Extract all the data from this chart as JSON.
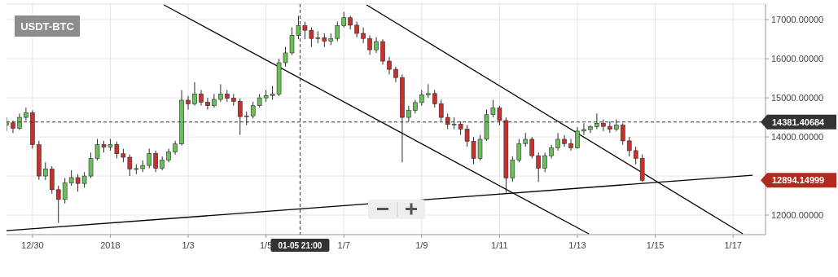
{
  "chart_data": {
    "type": "candlestick",
    "title": "USDT-BTC",
    "grid": true,
    "xlim": [
      "2017-12-29T08:00",
      "2018-01-17T20:00"
    ],
    "xticks": [
      {
        "value": "2017-12-30",
        "label": "12/30"
      },
      {
        "value": "2018-01-01",
        "label": "2018"
      },
      {
        "value": "2018-01-03",
        "label": "1/3"
      },
      {
        "value": "2018-01-05",
        "label": "1/5"
      },
      {
        "value": "2018-01-07",
        "label": "1/7"
      },
      {
        "value": "2018-01-09",
        "label": "1/9"
      },
      {
        "value": "2018-01-11",
        "label": "1/11"
      },
      {
        "value": "2018-01-13",
        "label": "1/13"
      },
      {
        "value": "2018-01-15",
        "label": "1/15"
      },
      {
        "value": "2018-01-17",
        "label": "1/17"
      }
    ],
    "ylim": [
      11500,
      17400
    ],
    "yticks": [
      {
        "value": 12000,
        "label": "12000.00000"
      },
      {
        "value": 13000,
        "label": null
      },
      {
        "value": 14000,
        "label": "14000.00000"
      },
      {
        "value": 15000,
        "label": "15000.00000"
      },
      {
        "value": 16000,
        "label": "16000.00000"
      },
      {
        "value": 17000,
        "label": "17000.00000"
      }
    ],
    "x": [
      "2017-12-29T08:00",
      "2017-12-29T12:00",
      "2017-12-29T16:00",
      "2017-12-29T20:00",
      "2017-12-30T00:00",
      "2017-12-30T04:00",
      "2017-12-30T08:00",
      "2017-12-30T12:00",
      "2017-12-30T16:00",
      "2017-12-30T20:00",
      "2017-12-31T00:00",
      "2017-12-31T04:00",
      "2017-12-31T08:00",
      "2017-12-31T12:00",
      "2017-12-31T16:00",
      "2017-12-31T20:00",
      "2018-01-01T00:00",
      "2018-01-01T04:00",
      "2018-01-01T08:00",
      "2018-01-01T12:00",
      "2018-01-01T16:00",
      "2018-01-01T20:00",
      "2018-01-02T00:00",
      "2018-01-02T04:00",
      "2018-01-02T08:00",
      "2018-01-02T12:00",
      "2018-01-02T16:00",
      "2018-01-02T20:00",
      "2018-01-03T00:00",
      "2018-01-03T04:00",
      "2018-01-03T08:00",
      "2018-01-03T12:00",
      "2018-01-03T16:00",
      "2018-01-03T20:00",
      "2018-01-04T00:00",
      "2018-01-04T04:00",
      "2018-01-04T08:00",
      "2018-01-04T12:00",
      "2018-01-04T16:00",
      "2018-01-04T20:00",
      "2018-01-05T00:00",
      "2018-01-05T04:00",
      "2018-01-05T08:00",
      "2018-01-05T12:00",
      "2018-01-05T16:00",
      "2018-01-05T20:00",
      "2018-01-06T00:00",
      "2018-01-06T04:00",
      "2018-01-06T08:00",
      "2018-01-06T12:00",
      "2018-01-06T16:00",
      "2018-01-06T20:00",
      "2018-01-07T00:00",
      "2018-01-07T04:00",
      "2018-01-07T08:00",
      "2018-01-07T12:00",
      "2018-01-07T16:00",
      "2018-01-07T20:00",
      "2018-01-08T00:00",
      "2018-01-08T04:00",
      "2018-01-08T08:00",
      "2018-01-08T12:00",
      "2018-01-08T16:00",
      "2018-01-08T20:00",
      "2018-01-09T00:00",
      "2018-01-09T04:00",
      "2018-01-09T08:00",
      "2018-01-09T12:00",
      "2018-01-09T16:00",
      "2018-01-09T20:00",
      "2018-01-10T00:00",
      "2018-01-10T04:00",
      "2018-01-10T08:00",
      "2018-01-10T12:00",
      "2018-01-10T16:00",
      "2018-01-10T20:00",
      "2018-01-11T00:00",
      "2018-01-11T04:00",
      "2018-01-11T08:00",
      "2018-01-11T12:00",
      "2018-01-11T16:00",
      "2018-01-11T20:00",
      "2018-01-12T00:00",
      "2018-01-12T04:00",
      "2018-01-12T08:00",
      "2018-01-12T12:00",
      "2018-01-12T16:00",
      "2018-01-12T20:00",
      "2018-01-13T00:00",
      "2018-01-13T04:00",
      "2018-01-13T08:00",
      "2018-01-13T12:00",
      "2018-01-13T16:00",
      "2018-01-13T20:00",
      "2018-01-14T00:00",
      "2018-01-14T04:00",
      "2018-01-14T08:00",
      "2018-01-14T12:00",
      "2018-01-14T16:00"
    ],
    "ohlc": [
      [
        14300,
        14500,
        14150,
        14360
      ],
      [
        14360,
        14420,
        14100,
        14220
      ],
      [
        14220,
        14600,
        14180,
        14500
      ],
      [
        14500,
        14750,
        14420,
        14620
      ],
      [
        14620,
        14680,
        13700,
        13800
      ],
      [
        13800,
        13900,
        12900,
        13000
      ],
      [
        13000,
        13350,
        12900,
        13180
      ],
      [
        13180,
        13250,
        12550,
        12650
      ],
      [
        12650,
        12750,
        11800,
        12400
      ],
      [
        12400,
        12950,
        12300,
        12820
      ],
      [
        12820,
        13150,
        12750,
        12960
      ],
      [
        12960,
        13050,
        12600,
        12810
      ],
      [
        12810,
        13100,
        12700,
        13000
      ],
      [
        13000,
        13600,
        12950,
        13450
      ],
      [
        13450,
        13950,
        13400,
        13800
      ],
      [
        13800,
        13900,
        13600,
        13740
      ],
      [
        13740,
        13950,
        13650,
        13800
      ],
      [
        13800,
        13880,
        13450,
        13570
      ],
      [
        13570,
        13700,
        13350,
        13480
      ],
      [
        13480,
        13550,
        13000,
        13180
      ],
      [
        13180,
        13300,
        13050,
        13190
      ],
      [
        13190,
        13400,
        13100,
        13270
      ],
      [
        13270,
        13700,
        13200,
        13580
      ],
      [
        13580,
        13650,
        13100,
        13200
      ],
      [
        13200,
        13500,
        13150,
        13410
      ],
      [
        13410,
        13700,
        13350,
        13620
      ],
      [
        13620,
        13900,
        13550,
        13820
      ],
      [
        13820,
        15200,
        13780,
        14940
      ],
      [
        14940,
        15050,
        14700,
        14850
      ],
      [
        14850,
        15400,
        14800,
        15100
      ],
      [
        15100,
        15200,
        14800,
        14890
      ],
      [
        14890,
        15000,
        14700,
        14800
      ],
      [
        14800,
        15100,
        14750,
        14960
      ],
      [
        14960,
        15350,
        14900,
        15100
      ],
      [
        15100,
        15200,
        14900,
        14990
      ],
      [
        14990,
        15100,
        14800,
        14910
      ],
      [
        14910,
        14980,
        14050,
        14520
      ],
      [
        14520,
        14650,
        14300,
        14540
      ],
      [
        14540,
        14900,
        14480,
        14800
      ],
      [
        14800,
        15100,
        14750,
        15000
      ],
      [
        15000,
        15200,
        14900,
        15060
      ],
      [
        15060,
        15300,
        14950,
        15100
      ],
      [
        15100,
        16000,
        15050,
        15900
      ],
      [
        15900,
        16300,
        15800,
        16150
      ],
      [
        16150,
        16800,
        16100,
        16600
      ],
      [
        16600,
        17100,
        16500,
        16850
      ],
      [
        16850,
        16950,
        16500,
        16730
      ],
      [
        16730,
        16800,
        16300,
        16520
      ],
      [
        16520,
        16700,
        16400,
        16540
      ],
      [
        16540,
        16650,
        16300,
        16450
      ],
      [
        16450,
        16650,
        16350,
        16520
      ],
      [
        16520,
        16950,
        16450,
        16850
      ],
      [
        16850,
        17200,
        16800,
        17050
      ],
      [
        17050,
        17100,
        16750,
        16860
      ],
      [
        16860,
        16950,
        16550,
        16650
      ],
      [
        16650,
        16800,
        16400,
        16520
      ],
      [
        16520,
        16600,
        16100,
        16230
      ],
      [
        16230,
        16550,
        16150,
        16440
      ],
      [
        16440,
        16500,
        15850,
        15940
      ],
      [
        15940,
        16050,
        15600,
        15730
      ],
      [
        15730,
        15800,
        15400,
        15520
      ],
      [
        15520,
        15600,
        13350,
        14500
      ],
      [
        14500,
        14800,
        14400,
        14680
      ],
      [
        14680,
        14950,
        14600,
        14880
      ],
      [
        14880,
        15200,
        14800,
        15080
      ],
      [
        15080,
        15350,
        15000,
        15110
      ],
      [
        15110,
        15200,
        14750,
        14850
      ],
      [
        14850,
        14950,
        14400,
        14500
      ],
      [
        14500,
        14600,
        14200,
        14320
      ],
      [
        14320,
        14500,
        14200,
        14330
      ],
      [
        14330,
        14400,
        14050,
        14200
      ],
      [
        14200,
        14300,
        13750,
        13890
      ],
      [
        13890,
        14000,
        13300,
        13450
      ],
      [
        13450,
        14050,
        13400,
        13940
      ],
      [
        13940,
        14700,
        13900,
        14570
      ],
      [
        14570,
        14950,
        14500,
        14740
      ],
      [
        14740,
        14800,
        14300,
        14420
      ],
      [
        14420,
        14500,
        12570,
        12950
      ],
      [
        12950,
        13500,
        12850,
        13410
      ],
      [
        13410,
        13950,
        13350,
        13830
      ],
      [
        13830,
        14100,
        13750,
        13940
      ],
      [
        13940,
        14000,
        13450,
        13520
      ],
      [
        13520,
        13600,
        12850,
        13200
      ],
      [
        13200,
        13600,
        13100,
        13520
      ],
      [
        13520,
        13800,
        13450,
        13720
      ],
      [
        13720,
        14100,
        13650,
        13940
      ],
      [
        13940,
        14050,
        13750,
        13830
      ],
      [
        13830,
        13950,
        13650,
        13720
      ],
      [
        13720,
        14250,
        13700,
        14150
      ],
      [
        14150,
        14350,
        14050,
        14190
      ],
      [
        14190,
        14300,
        14100,
        14260
      ],
      [
        14260,
        14600,
        14200,
        14350
      ],
      [
        14350,
        14450,
        14150,
        14270
      ],
      [
        14270,
        14400,
        14100,
        14200
      ],
      [
        14200,
        14450,
        14150,
        14300
      ],
      [
        14300,
        14350,
        13800,
        13900
      ],
      [
        13900,
        14000,
        13500,
        13650
      ],
      [
        13650,
        13750,
        13300,
        13450
      ],
      [
        13450,
        13550,
        12850,
        12890
      ]
    ],
    "series": [
      {
        "type": "line",
        "color": "#000000",
        "x": [
          "2017-12-29T08:00",
          "2018-01-17T12:00"
        ],
        "values": [
          11600,
          13020
        ]
      },
      {
        "type": "line",
        "color": "#000000",
        "x": [
          "2018-01-02T09:00",
          "2018-01-13T07:00"
        ],
        "values": [
          17380,
          11520
        ]
      },
      {
        "type": "line",
        "color": "#000000",
        "x": [
          "2018-01-07T14:00",
          "2018-01-17T06:00"
        ],
        "values": [
          17380,
          11520
        ]
      }
    ],
    "ref_lines": [
      {
        "axis": "y",
        "value": 14381.40684,
        "label": "14381.40684",
        "line_style": "dashed",
        "color": "#333333"
      },
      {
        "axis": "x",
        "value": "2018-01-05T21:00",
        "label": "01-05 21:00",
        "line_style": "dashed",
        "color": "#333333"
      }
    ],
    "annotations": [
      "12894.14999"
    ]
  }
}
